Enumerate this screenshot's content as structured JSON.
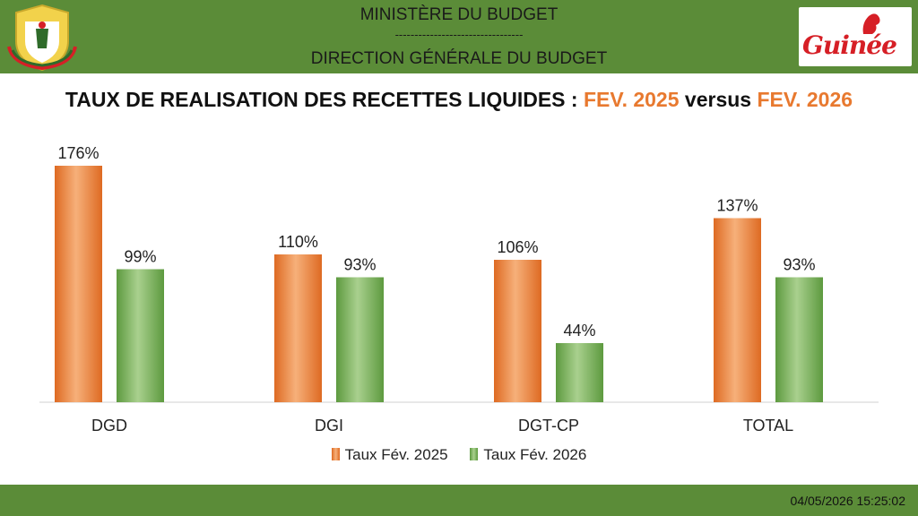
{
  "header": {
    "line1": "MINISTÈRE DU BUDGET",
    "separator": "---------------------------------",
    "line2": "DIRECTION GÉNÉRALE DU BUDGET",
    "logo_text": "Guinée",
    "emblem_icon": "coat-of-arms-icon"
  },
  "title": {
    "main": "TAUX DE REALISATION DES RECETTES LIQUIDES : ",
    "period1": "FEV. 2025",
    "versus": " versus ",
    "period2": "FEV. 2026"
  },
  "colors": {
    "header_green": "#5b8c38",
    "series_2025": "#e8792f",
    "series_2026": "#6aa84f",
    "highlight": "#e8792f"
  },
  "chart_data": {
    "type": "bar",
    "categories": [
      "DGD",
      "DGI",
      "DGT-CP",
      "TOTAL"
    ],
    "series": [
      {
        "name": "Taux Fév. 2025",
        "values": [
          176,
          110,
          106,
          137
        ],
        "labels": [
          "176%",
          "110%",
          "106%",
          "137%"
        ]
      },
      {
        "name": "Taux Fév. 2026",
        "values": [
          99,
          93,
          44,
          93
        ],
        "labels": [
          "99%",
          "93%",
          "44%",
          "93%"
        ]
      }
    ],
    "ylim": [
      0,
      200
    ],
    "grid": false,
    "legend": "bottom"
  },
  "footer": {
    "timestamp": "04/05/2026 15:25:02"
  }
}
